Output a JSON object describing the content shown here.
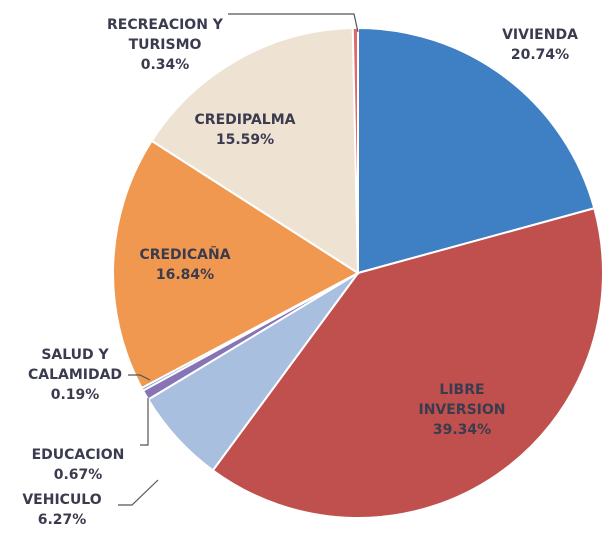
{
  "chart_data": {
    "type": "pie",
    "categories": [
      "VIVIENDA",
      "LIBRE INVERSION",
      "VEHICULO",
      "EDUCACION",
      "SALUD Y CALAMIDAD",
      "CREDICAÑA",
      "CREDIPALMA",
      "RECREACION Y TURISMO"
    ],
    "values": [
      20.74,
      39.34,
      6.27,
      0.67,
      0.19,
      16.84,
      15.59,
      0.34
    ],
    "value_labels": [
      "20.74%",
      "39.34%",
      "6.27%",
      "0.67%",
      "0.19%",
      "16.84%",
      "15.59%",
      "0.34%"
    ],
    "colors": [
      "#3f7fc4",
      "#c0504d",
      "#a9bfe0",
      "#8674b5",
      "#6d8fd0",
      "#f0984f",
      "#eee2d3",
      "#e06868"
    ]
  }
}
